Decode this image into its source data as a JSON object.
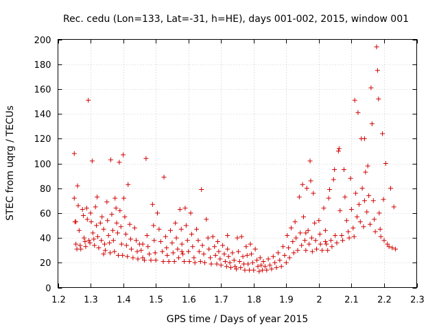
{
  "chart_data": {
    "type": "scatter",
    "title": "Rec. cedu (Lon=133, Lat=-31, h=HE), days 001-002, 2015, window 001",
    "xlabel": "GPS time / Days of year 2015",
    "ylabel": "STEC from uqrg / TECUs",
    "xlim": [
      1.2,
      2.3
    ],
    "ylim": [
      0,
      200
    ],
    "xticks": [
      1.2,
      1.3,
      1.4,
      1.5,
      1.6,
      1.7,
      1.8,
      1.9,
      2.0,
      2.1,
      2.2,
      2.3
    ],
    "xtick_labels": [
      "1.2",
      "1.3",
      "1.4",
      "1.5",
      "1.6",
      "1.7",
      "1.8",
      "1.9",
      "2",
      "2.1",
      "2.2",
      "2.3"
    ],
    "yticks": [
      0,
      20,
      40,
      60,
      80,
      100,
      120,
      140,
      160,
      180,
      200
    ],
    "ytick_labels": [
      "0",
      "20",
      "40",
      "60",
      "80",
      "100",
      "120",
      "140",
      "160",
      "180",
      "200"
    ],
    "grid": true,
    "marker": "+",
    "marker_color": "#d00000",
    "series": [
      {
        "name": "STEC",
        "points": [
          [
            1.25,
            108
          ],
          [
            1.25,
            72
          ],
          [
            1.252,
            53
          ],
          [
            1.255,
            35
          ],
          [
            1.258,
            31
          ],
          [
            1.26,
            82
          ],
          [
            1.262,
            66
          ],
          [
            1.265,
            46
          ],
          [
            1.268,
            34
          ],
          [
            1.27,
            31
          ],
          [
            1.275,
            63
          ],
          [
            1.278,
            58
          ],
          [
            1.28,
            40
          ],
          [
            1.283,
            37
          ],
          [
            1.285,
            33
          ],
          [
            1.288,
            64
          ],
          [
            1.29,
            55
          ],
          [
            1.293,
            151
          ],
          [
            1.295,
            38
          ],
          [
            1.298,
            36
          ],
          [
            1.3,
            60
          ],
          [
            1.302,
            53
          ],
          [
            1.305,
            102
          ],
          [
            1.307,
            44
          ],
          [
            1.31,
            39
          ],
          [
            1.312,
            34
          ],
          [
            1.315,
            65
          ],
          [
            1.318,
            50
          ],
          [
            1.32,
            73
          ],
          [
            1.322,
            41
          ],
          [
            1.325,
            32
          ],
          [
            1.33,
            52
          ],
          [
            1.333,
            38
          ],
          [
            1.335,
            57
          ],
          [
            1.34,
            47
          ],
          [
            1.343,
            35
          ],
          [
            1.345,
            30
          ],
          [
            1.35,
            69
          ],
          [
            1.352,
            54
          ],
          [
            1.355,
            42
          ],
          [
            1.358,
            36
          ],
          [
            1.36,
            28
          ],
          [
            1.362,
            103
          ],
          [
            1.365,
            59
          ],
          [
            1.368,
            46
          ],
          [
            1.37,
            38
          ],
          [
            1.373,
            29
          ],
          [
            1.375,
            72
          ],
          [
            1.378,
            64
          ],
          [
            1.38,
            52
          ],
          [
            1.383,
            44
          ],
          [
            1.385,
            26
          ],
          [
            1.388,
            101
          ],
          [
            1.39,
            62
          ],
          [
            1.393,
            49
          ],
          [
            1.395,
            35
          ],
          [
            1.398,
            26
          ],
          [
            1.4,
            107
          ],
          [
            1.402,
            72
          ],
          [
            1.405,
            57
          ],
          [
            1.408,
            43
          ],
          [
            1.41,
            34
          ],
          [
            1.413,
            25
          ],
          [
            1.415,
            83
          ],
          [
            1.42,
            51
          ],
          [
            1.423,
            39
          ],
          [
            1.425,
            31
          ],
          [
            1.43,
            24
          ],
          [
            1.435,
            48
          ],
          [
            1.44,
            38
          ],
          [
            1.443,
            29
          ],
          [
            1.445,
            23
          ],
          [
            1.45,
            35
          ],
          [
            1.455,
            30
          ],
          [
            1.46,
            24
          ],
          [
            1.465,
            22
          ],
          [
            1.47,
            104
          ],
          [
            1.473,
            42
          ],
          [
            1.476,
            33
          ],
          [
            1.48,
            27
          ],
          [
            1.485,
            22
          ],
          [
            1.49,
            67
          ],
          [
            1.493,
            50
          ],
          [
            1.495,
            38
          ],
          [
            1.498,
            28
          ],
          [
            1.5,
            22
          ],
          [
            1.505,
            60
          ],
          [
            1.51,
            47
          ],
          [
            1.515,
            37
          ],
          [
            1.52,
            29
          ],
          [
            1.523,
            21
          ],
          [
            1.525,
            89
          ],
          [
            1.53,
            41
          ],
          [
            1.533,
            32
          ],
          [
            1.535,
            26
          ],
          [
            1.54,
            21
          ],
          [
            1.545,
            46
          ],
          [
            1.55,
            36
          ],
          [
            1.553,
            28
          ],
          [
            1.557,
            21
          ],
          [
            1.56,
            52
          ],
          [
            1.563,
            40
          ],
          [
            1.567,
            31
          ],
          [
            1.57,
            24
          ],
          [
            1.574,
            63
          ],
          [
            1.578,
            47
          ],
          [
            1.58,
            35
          ],
          [
            1.583,
            27
          ],
          [
            1.587,
            21
          ],
          [
            1.59,
            64
          ],
          [
            1.593,
            50
          ],
          [
            1.597,
            38
          ],
          [
            1.6,
            29
          ],
          [
            1.603,
            21
          ],
          [
            1.607,
            60
          ],
          [
            1.61,
            43
          ],
          [
            1.613,
            33
          ],
          [
            1.617,
            24
          ],
          [
            1.62,
            20
          ],
          [
            1.625,
            47
          ],
          [
            1.63,
            38
          ],
          [
            1.633,
            29
          ],
          [
            1.637,
            21
          ],
          [
            1.64,
            79
          ],
          [
            1.643,
            34
          ],
          [
            1.647,
            27
          ],
          [
            1.65,
            20
          ],
          [
            1.655,
            55
          ],
          [
            1.66,
            40
          ],
          [
            1.663,
            31
          ],
          [
            1.667,
            24
          ],
          [
            1.67,
            19
          ],
          [
            1.675,
            41
          ],
          [
            1.68,
            33
          ],
          [
            1.683,
            26
          ],
          [
            1.687,
            19
          ],
          [
            1.69,
            37
          ],
          [
            1.693,
            29
          ],
          [
            1.697,
            23
          ],
          [
            1.7,
            18
          ],
          [
            1.705,
            34
          ],
          [
            1.71,
            27
          ],
          [
            1.713,
            21
          ],
          [
            1.717,
            17
          ],
          [
            1.72,
            42
          ],
          [
            1.723,
            25
          ],
          [
            1.727,
            20
          ],
          [
            1.73,
            16
          ],
          [
            1.735,
            28
          ],
          [
            1.74,
            22
          ],
          [
            1.743,
            17
          ],
          [
            1.747,
            15
          ],
          [
            1.75,
            40
          ],
          [
            1.753,
            29
          ],
          [
            1.757,
            21
          ],
          [
            1.76,
            16
          ],
          [
            1.763,
            41
          ],
          [
            1.767,
            25
          ],
          [
            1.77,
            19
          ],
          [
            1.773,
            14
          ],
          [
            1.777,
            33
          ],
          [
            1.78,
            26
          ],
          [
            1.783,
            19
          ],
          [
            1.787,
            14
          ],
          [
            1.79,
            35
          ],
          [
            1.793,
            27
          ],
          [
            1.797,
            20
          ],
          [
            1.8,
            14
          ],
          [
            1.805,
            31
          ],
          [
            1.81,
            22
          ],
          [
            1.813,
            17
          ],
          [
            1.817,
            13
          ],
          [
            1.82,
            24
          ],
          [
            1.823,
            18
          ],
          [
            1.827,
            14
          ],
          [
            1.83,
            21
          ],
          [
            1.835,
            17
          ],
          [
            1.84,
            14
          ],
          [
            1.845,
            23
          ],
          [
            1.85,
            18
          ],
          [
            1.855,
            15
          ],
          [
            1.86,
            25
          ],
          [
            1.865,
            20
          ],
          [
            1.87,
            16
          ],
          [
            1.875,
            28
          ],
          [
            1.88,
            22
          ],
          [
            1.885,
            17
          ],
          [
            1.89,
            33
          ],
          [
            1.895,
            26
          ],
          [
            1.9,
            20
          ],
          [
            1.903,
            42
          ],
          [
            1.907,
            32
          ],
          [
            1.91,
            24
          ],
          [
            1.915,
            48
          ],
          [
            1.92,
            37
          ],
          [
            1.923,
            28
          ],
          [
            1.927,
            53
          ],
          [
            1.93,
            40
          ],
          [
            1.935,
            30
          ],
          [
            1.94,
            73
          ],
          [
            1.943,
            44
          ],
          [
            1.947,
            34
          ],
          [
            1.95,
            83
          ],
          [
            1.953,
            57
          ],
          [
            1.957,
            38
          ],
          [
            1.96,
            30
          ],
          [
            1.963,
            80
          ],
          [
            1.967,
            46
          ],
          [
            1.97,
            35
          ],
          [
            1.973,
            102
          ],
          [
            1.975,
            86
          ],
          [
            1.978,
            40
          ],
          [
            1.98,
            29
          ],
          [
            1.983,
            76
          ],
          [
            1.987,
            52
          ],
          [
            1.99,
            38
          ],
          [
            1.993,
            31
          ],
          [
            2.0,
            54
          ],
          [
            2.003,
            43
          ],
          [
            2.005,
            35
          ],
          [
            2.01,
            30
          ],
          [
            2.015,
            64
          ],
          [
            2.02,
            46
          ],
          [
            2.023,
            35
          ],
          [
            2.027,
            30
          ],
          [
            2.03,
            72
          ],
          [
            2.033,
            79
          ],
          [
            2.037,
            38
          ],
          [
            2.04,
            33
          ],
          [
            2.045,
            87
          ],
          [
            2.048,
            95
          ],
          [
            2.05,
            42
          ],
          [
            2.055,
            36
          ],
          [
            2.06,
            110
          ],
          [
            2.062,
            112
          ],
          [
            2.065,
            62
          ],
          [
            2.07,
            42
          ],
          [
            2.073,
            38
          ],
          [
            2.077,
            95
          ],
          [
            2.08,
            73
          ],
          [
            2.085,
            54
          ],
          [
            2.09,
            45
          ],
          [
            2.093,
            40
          ],
          [
            2.097,
            88
          ],
          [
            2.1,
            63
          ],
          [
            2.105,
            48
          ],
          [
            2.108,
            41
          ],
          [
            2.11,
            151
          ],
          [
            2.113,
            76
          ],
          [
            2.117,
            57
          ],
          [
            2.12,
            141
          ],
          [
            2.123,
            67
          ],
          [
            2.127,
            53
          ],
          [
            2.13,
            120
          ],
          [
            2.133,
            80
          ],
          [
            2.137,
            49
          ],
          [
            2.14,
            120
          ],
          [
            2.143,
            93
          ],
          [
            2.147,
            61
          ],
          [
            2.15,
            98
          ],
          [
            2.153,
            74
          ],
          [
            2.157,
            51
          ],
          [
            2.16,
            161
          ],
          [
            2.163,
            132
          ],
          [
            2.167,
            70
          ],
          [
            2.17,
            55
          ],
          [
            2.173,
            45
          ],
          [
            2.177,
            194
          ],
          [
            2.18,
            175
          ],
          [
            2.183,
            152
          ],
          [
            2.185,
            60
          ],
          [
            2.188,
            47
          ],
          [
            2.19,
            41
          ],
          [
            2.195,
            124
          ],
          [
            2.198,
            71
          ],
          [
            2.2,
            38
          ],
          [
            2.205,
            100
          ],
          [
            2.21,
            35
          ],
          [
            2.215,
            33
          ],
          [
            2.22,
            80
          ],
          [
            2.225,
            32
          ],
          [
            2.23,
            65
          ],
          [
            2.235,
            31
          ],
          [
            1.255,
            53
          ],
          [
            1.34,
            27
          ],
          [
            1.46,
            35
          ],
          [
            1.58,
            29
          ],
          [
            1.72,
            31
          ],
          [
            1.96,
            44
          ],
          [
            2.02,
            37
          ],
          [
            2.14,
            70
          ]
        ]
      }
    ]
  }
}
